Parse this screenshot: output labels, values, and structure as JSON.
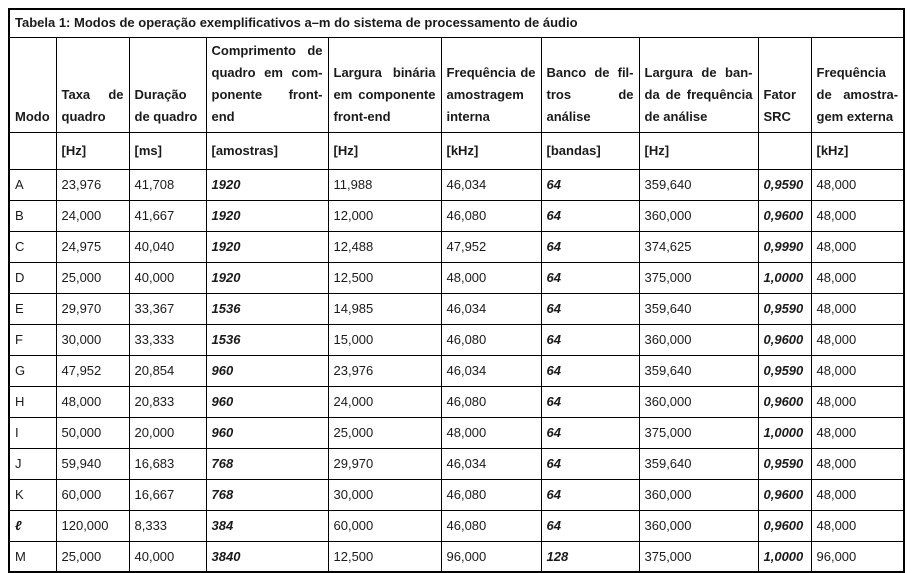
{
  "title": "Tabela 1: Modos de operação exemplificativos a–m do sistema de processamento de áudio",
  "colors": {
    "text": "#1a1a1a",
    "border": "#000000",
    "background": "#ffffff"
  },
  "table": {
    "headers": [
      {
        "lines": [
          "Modo"
        ],
        "unit": ""
      },
      {
        "lines": [
          "Taxa de",
          "quadro"
        ],
        "unit": "[Hz]"
      },
      {
        "lines": [
          "Duração",
          "de quadro"
        ],
        "unit": "[ms]"
      },
      {
        "lines": [
          "Comprimento de",
          "quadro em com-",
          "ponente front-end"
        ],
        "unit": "[amostras]"
      },
      {
        "lines": [
          "Largura binária",
          "em componente",
          "front-end"
        ],
        "unit": "[Hz]"
      },
      {
        "lines": [
          "Frequência de",
          "amostragem",
          "interna"
        ],
        "unit": "[kHz]"
      },
      {
        "lines": [
          "Banco de fil-",
          "tros de análise"
        ],
        "unit": "[bandas]"
      },
      {
        "lines": [
          "Largura de ban-",
          "da de frequência",
          "de análise"
        ],
        "unit": "[Hz]"
      },
      {
        "lines": [
          "Fator",
          "SRC"
        ],
        "unit": ""
      },
      {
        "lines": [
          "Frequência",
          "de amostra-",
          "gem externa"
        ],
        "unit": "[kHz]"
      }
    ],
    "rows": [
      {
        "mode": "A",
        "cells": [
          "23,976",
          "41,708",
          "1920",
          "11,988",
          "46,034",
          "64",
          "359,640",
          "0,9590",
          "48,000"
        ]
      },
      {
        "mode": "B",
        "cells": [
          "24,000",
          "41,667",
          "1920",
          "12,000",
          "46,080",
          "64",
          "360,000",
          "0,9600",
          "48,000"
        ]
      },
      {
        "mode": "C",
        "cells": [
          "24,975",
          "40,040",
          "1920",
          "12,488",
          "47,952",
          "64",
          "374,625",
          "0,9990",
          "48,000"
        ]
      },
      {
        "mode": "D",
        "cells": [
          "25,000",
          "40,000",
          "1920",
          "12,500",
          "48,000",
          "64",
          "375,000",
          "1,0000",
          "48,000"
        ]
      },
      {
        "mode": "E",
        "cells": [
          "29,970",
          "33,367",
          "1536",
          "14,985",
          "46,034",
          "64",
          "359,640",
          "0,9590",
          "48,000"
        ]
      },
      {
        "mode": "F",
        "cells": [
          "30,000",
          "33,333",
          "1536",
          "15,000",
          "46,080",
          "64",
          "360,000",
          "0,9600",
          "48,000"
        ]
      },
      {
        "mode": "G",
        "cells": [
          "47,952",
          "20,854",
          "960",
          "23,976",
          "46,034",
          "64",
          "359,640",
          "0,9590",
          "48,000"
        ]
      },
      {
        "mode": "H",
        "cells": [
          "48,000",
          "20,833",
          "960",
          "24,000",
          "46,080",
          "64",
          "360,000",
          "0,9600",
          "48,000"
        ]
      },
      {
        "mode": "I",
        "cells": [
          "50,000",
          "20,000",
          "960",
          "25,000",
          "48,000",
          "64",
          "375,000",
          "1,0000",
          "48,000"
        ]
      },
      {
        "mode": "J",
        "cells": [
          "59,940",
          "16,683",
          "768",
          "29,970",
          "46,034",
          "64",
          "359,640",
          "0,9590",
          "48,000"
        ]
      },
      {
        "mode": "K",
        "cells": [
          "60,000",
          "16,667",
          "768",
          "30,000",
          "46,080",
          "64",
          "360,000",
          "0,9600",
          "48,000"
        ]
      },
      {
        "mode": "ℓ",
        "cells": [
          "120,000",
          "8,333",
          "384",
          "60,000",
          "46,080",
          "64",
          "360,000",
          "0,9600",
          "48,000"
        ]
      },
      {
        "mode": "M",
        "cells": [
          "25,000",
          "40,000",
          "3840",
          "12,500",
          "96,000",
          "128",
          "375,000",
          "1,0000",
          "96,000"
        ]
      }
    ]
  }
}
